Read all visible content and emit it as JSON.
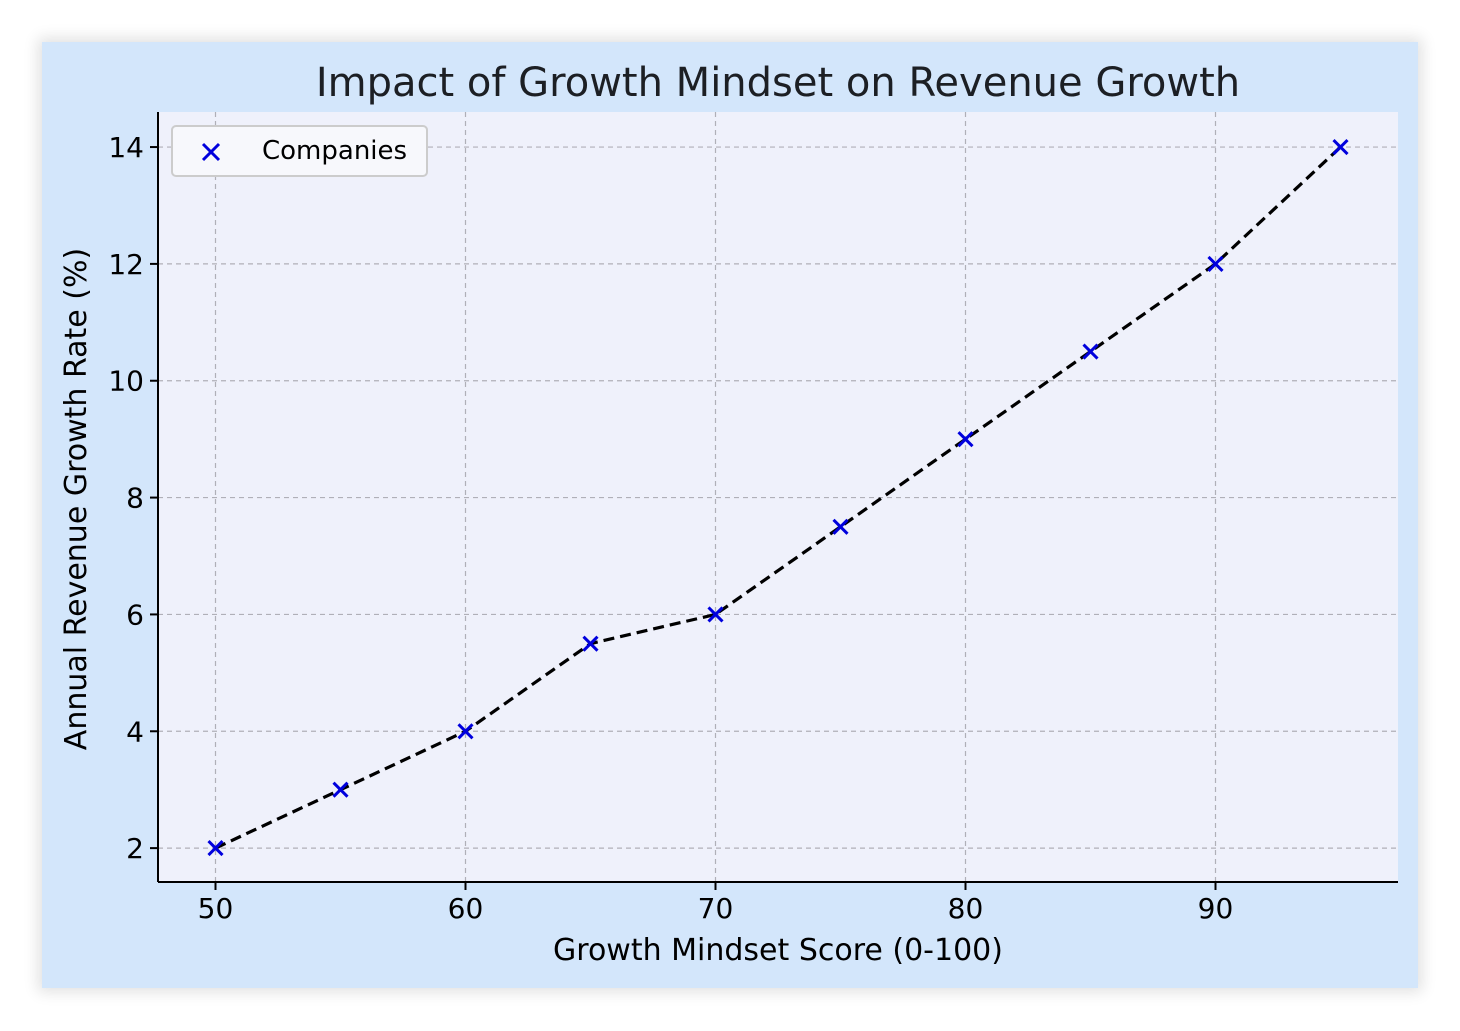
{
  "chart_data": {
    "type": "line",
    "title": "Impact of Growth Mindset on Revenue Growth",
    "xlabel": "Growth Mindset Score (0-100)",
    "ylabel": "Annual Revenue Growth Rate (%)",
    "xlim": [
      47.7,
      97.3
    ],
    "ylim": [
      1.42,
      14.6
    ],
    "xticks": [
      50,
      60,
      70,
      80,
      90
    ],
    "yticks": [
      2,
      4,
      6,
      8,
      10,
      12,
      14
    ],
    "grid": true,
    "legend_position": "top-left",
    "series": [
      {
        "name": "Companies",
        "marker": "x",
        "marker_color": "#0000dd",
        "line_style": "dashed",
        "line_color": "#000000",
        "x": [
          50,
          55,
          60,
          65,
          70,
          75,
          80,
          85,
          90,
          95
        ],
        "y": [
          2,
          3,
          4,
          5.5,
          6,
          7.5,
          9,
          10.5,
          12,
          14
        ]
      }
    ]
  },
  "colors": {
    "figure_background": "#d3e6fb",
    "plot_background": "#eff1fb",
    "grid": "#b0b0b8"
  }
}
